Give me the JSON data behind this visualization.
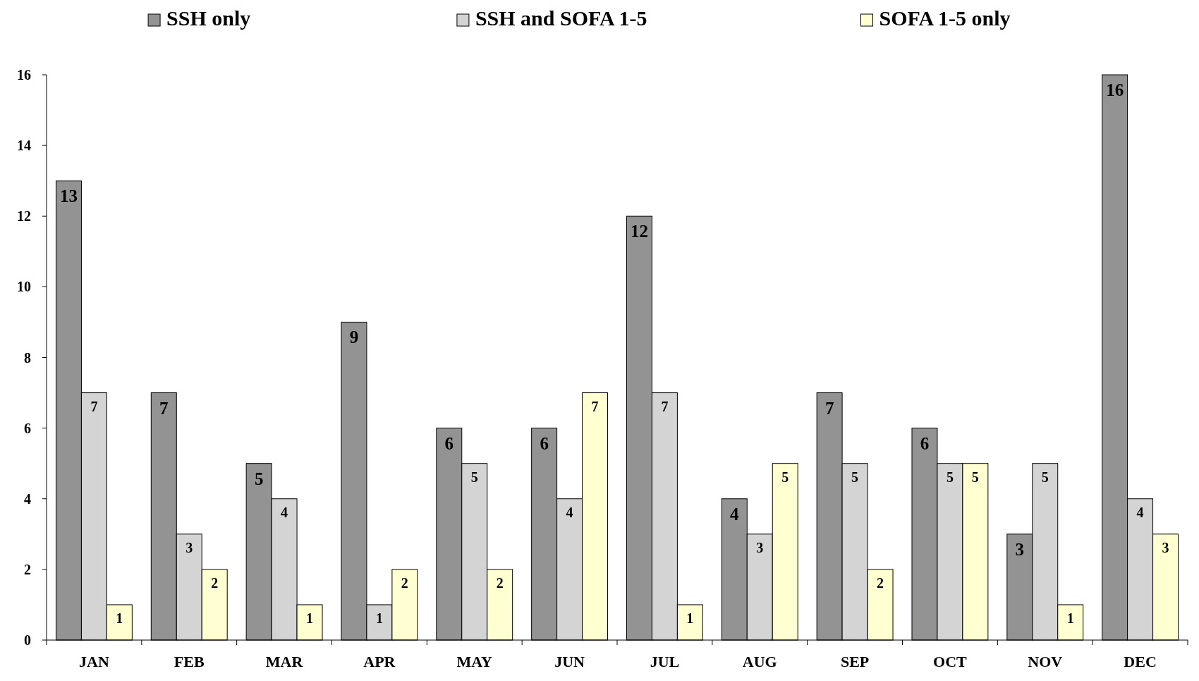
{
  "chart_data": {
    "type": "bar",
    "categories": [
      "JAN",
      "FEB",
      "MAR",
      "APR",
      "MAY",
      "JUN",
      "JUL",
      "AUG",
      "SEP",
      "OCT",
      "NOV",
      "DEC"
    ],
    "series": [
      {
        "name": "SSH only",
        "color": "#939393",
        "values": [
          13,
          7,
          5,
          9,
          6,
          6,
          12,
          4,
          7,
          6,
          3,
          16
        ]
      },
      {
        "name": "SSH and SOFA 1-5",
        "color": "#d4d4d4",
        "values": [
          7,
          3,
          4,
          1,
          5,
          4,
          7,
          3,
          5,
          5,
          5,
          4
        ]
      },
      {
        "name": "SOFA 1-5 only",
        "color": "#ffffd2",
        "values": [
          1,
          2,
          1,
          2,
          2,
          7,
          1,
          5,
          2,
          5,
          1,
          3
        ]
      }
    ],
    "ylim": [
      0,
      16
    ],
    "yticks": [
      0,
      2,
      4,
      6,
      8,
      10,
      12,
      14,
      16
    ],
    "grid": false,
    "legend": "top",
    "data_labels": true
  }
}
